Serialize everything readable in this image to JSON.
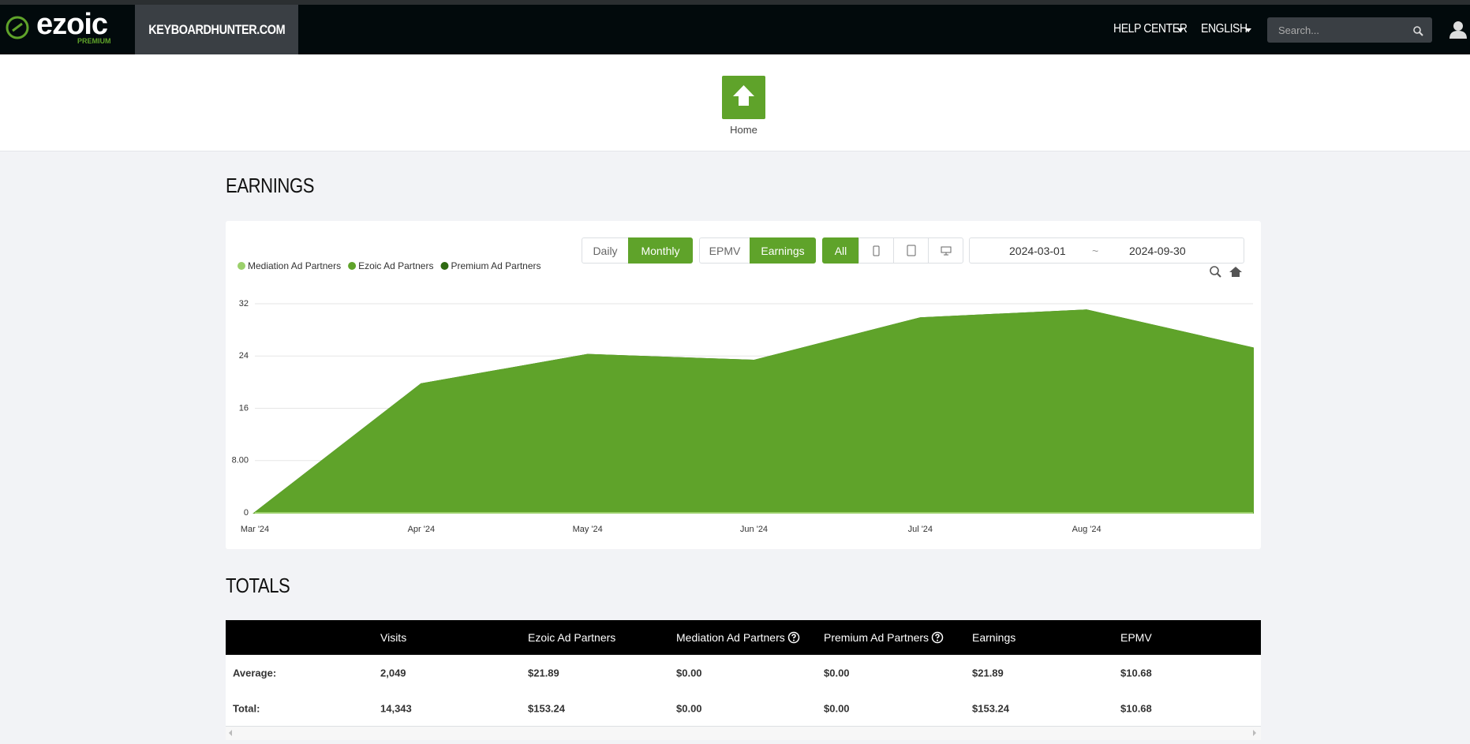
{
  "header": {
    "logo": "ezoic",
    "logo_sub": "PREMIUM",
    "site": "KEYBOARDHUNTER.COM",
    "help_center": "HELP CENTER",
    "language": "ENGLISH",
    "search_placeholder": "Search..."
  },
  "nav": {
    "home": "Home"
  },
  "earnings_title": "EARNINGS",
  "controls": {
    "daily": "Daily",
    "monthly": "Monthly",
    "epmv": "EPMV",
    "earnings": "Earnings",
    "all": "All",
    "date_start": "2024-03-01",
    "date_sep": "~",
    "date_end": "2024-09-30"
  },
  "chart_data": {
    "type": "stacked-area",
    "categories": [
      "Mar '24",
      "Apr '24",
      "May '24",
      "Jun '24",
      "Jul '24",
      "Aug '24",
      null
    ],
    "series": [
      {
        "name": "Mediation Ad Partners",
        "color": "#9bd06b",
        "values": [
          0,
          0,
          0,
          0,
          0,
          0,
          0
        ]
      },
      {
        "name": "Ezoic Ad Partners",
        "color": "#5fa32a",
        "values": [
          0,
          19.7,
          24.2,
          23.3,
          29.8,
          31.0,
          25.2
        ]
      },
      {
        "name": "Premium Ad Partners",
        "color": "#2f6a12",
        "values": [
          0,
          0,
          0,
          0,
          0,
          0,
          0
        ]
      }
    ],
    "ylim": [
      0,
      32
    ],
    "yticks": [
      0,
      {
        "value": 8,
        "label": "8.00"
      },
      16,
      24,
      32
    ],
    "grid": true,
    "legend": "top-left"
  },
  "totals_title": "TOTALS",
  "table": {
    "headers": [
      "Visits",
      "Ezoic Ad Partners",
      "Mediation Ad Partners",
      "Premium Ad Partners",
      "Earnings",
      "EPMV"
    ],
    "rows": [
      [
        "Average:",
        "2,049",
        "$21.89",
        "$0.00",
        "$0.00",
        "$21.89",
        "$10.68"
      ],
      [
        "Total:",
        "14,343",
        "$153.24",
        "$0.00",
        "$0.00",
        "$153.24",
        "$10.68"
      ]
    ]
  }
}
